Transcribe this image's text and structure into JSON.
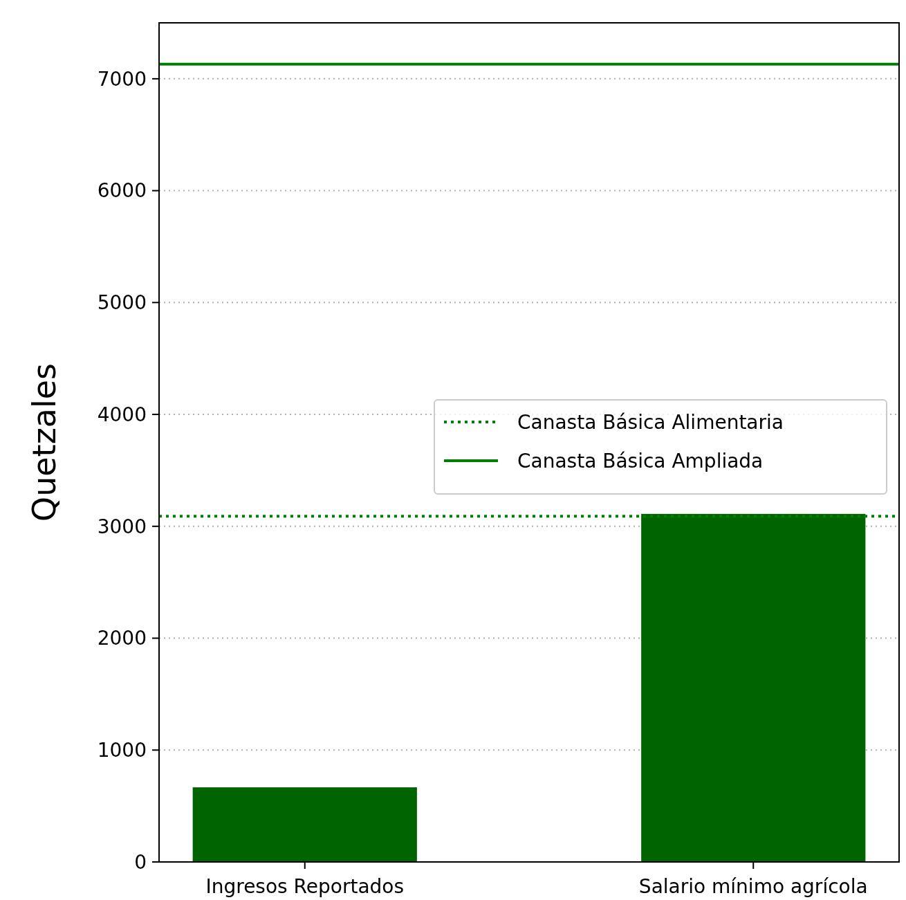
{
  "chart_data": {
    "type": "bar",
    "ylabel": "Quetzales",
    "categories": [
      "Ingresos Reportados",
      "Salario mínimo agrícola"
    ],
    "values": [
      667,
      3111
    ],
    "color": "#006400",
    "ylim": [
      0,
      7500
    ],
    "yticks": [
      0,
      1000,
      2000,
      3000,
      4000,
      5000,
      6000,
      7000
    ],
    "grid": "y",
    "legend": "center right",
    "ref_lines": [
      {
        "axis": "y",
        "value": 3090,
        "label": "Canasta Básica Alimentaria",
        "color": "#008000",
        "line_style": "dotted"
      },
      {
        "axis": "y",
        "value": 7130,
        "label": "Canasta Básica Ampliada",
        "color": "#008000",
        "line_style": "solid"
      }
    ]
  }
}
